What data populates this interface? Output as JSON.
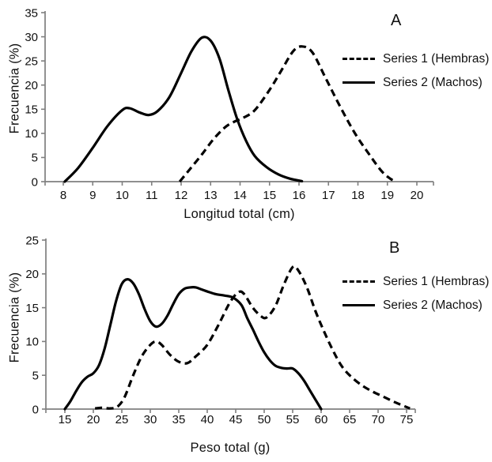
{
  "colors": {
    "curve": "#000000",
    "axis": "#7f7f7f",
    "text": "#111111",
    "background": "#ffffff"
  },
  "chart_data": [
    {
      "id": "A",
      "type": "line",
      "panel_label": "A",
      "xlabel": "Longitud total (cm)",
      "ylabel": "Frecuencia (%)",
      "xlim": [
        8,
        20
      ],
      "ylim": [
        0,
        35
      ],
      "xticks": [
        8,
        9,
        10,
        11,
        12,
        13,
        14,
        15,
        16,
        17,
        18,
        19,
        20
      ],
      "yticks": [
        0,
        5,
        10,
        15,
        20,
        25,
        30,
        35
      ],
      "grid": false,
      "legend_position": "right",
      "series": [
        {
          "name": "Series 1 (Hembras)",
          "style": "dashed",
          "points": [
            [
              11.95,
              0
            ],
            [
              12.3,
              2.6
            ],
            [
              12.7,
              5.6
            ],
            [
              13.1,
              8.8
            ],
            [
              13.5,
              11.3
            ],
            [
              13.8,
              12.4
            ],
            [
              14.1,
              13.2
            ],
            [
              14.5,
              14.8
            ],
            [
              15.0,
              19.0
            ],
            [
              15.4,
              23.0
            ],
            [
              15.8,
              27.0
            ],
            [
              16.1,
              28.0
            ],
            [
              16.45,
              26.8
            ],
            [
              16.9,
              21.5
            ],
            [
              17.4,
              15.5
            ],
            [
              17.9,
              10.0
            ],
            [
              18.4,
              5.5
            ],
            [
              18.8,
              2.2
            ],
            [
              19.1,
              0.6
            ],
            [
              19.25,
              0.15
            ]
          ]
        },
        {
          "name": "Series 2 (Machos)",
          "style": "solid",
          "points": [
            [
              8.05,
              0
            ],
            [
              8.5,
              2.8
            ],
            [
              9.0,
              7.0
            ],
            [
              9.5,
              11.5
            ],
            [
              10.0,
              14.8
            ],
            [
              10.25,
              15.2
            ],
            [
              10.6,
              14.3
            ],
            [
              10.9,
              13.8
            ],
            [
              11.2,
              14.6
            ],
            [
              11.6,
              17.5
            ],
            [
              12.0,
              22.5
            ],
            [
              12.35,
              27.0
            ],
            [
              12.7,
              29.8
            ],
            [
              13.0,
              29.2
            ],
            [
              13.3,
              25.5
            ],
            [
              13.6,
              19.0
            ],
            [
              13.9,
              13.0
            ],
            [
              14.2,
              8.5
            ],
            [
              14.5,
              5.3
            ],
            [
              14.9,
              3.0
            ],
            [
              15.3,
              1.5
            ],
            [
              15.7,
              0.6
            ],
            [
              16.1,
              0.1
            ]
          ]
        }
      ]
    },
    {
      "id": "B",
      "type": "line",
      "panel_label": "B",
      "xlabel": "Peso total (g)",
      "ylabel": "Frecuencia (%)",
      "xlim": [
        15,
        75
      ],
      "ylim": [
        0,
        25
      ],
      "xticks": [
        15,
        20,
        25,
        30,
        35,
        40,
        45,
        50,
        55,
        60,
        65,
        70,
        75
      ],
      "yticks": [
        0,
        5,
        10,
        15,
        20,
        25
      ],
      "grid": false,
      "legend_position": "right",
      "series": [
        {
          "name": "Series 1 (Hembras)",
          "style": "dashed",
          "points": [
            [
              20.3,
              0.1
            ],
            [
              21.5,
              0.2
            ],
            [
              23.0,
              0.1
            ],
            [
              24.3,
              0.4
            ],
            [
              25.5,
              1.8
            ],
            [
              27.0,
              5.0
            ],
            [
              28.5,
              7.8
            ],
            [
              30.0,
              9.5
            ],
            [
              31.0,
              10.0
            ],
            [
              32.0,
              9.5
            ],
            [
              33.5,
              8.0
            ],
            [
              35.0,
              7.0
            ],
            [
              36.5,
              6.8
            ],
            [
              38.0,
              7.8
            ],
            [
              40.0,
              9.5
            ],
            [
              42.0,
              12.5
            ],
            [
              44.0,
              15.8
            ],
            [
              45.5,
              17.3
            ],
            [
              46.5,
              17.0
            ],
            [
              48.0,
              15.0
            ],
            [
              49.5,
              13.7
            ],
            [
              50.5,
              13.6
            ],
            [
              52.0,
              15.3
            ],
            [
              53.5,
              18.5
            ],
            [
              55.0,
              21.0
            ],
            [
              56.0,
              20.5
            ],
            [
              57.5,
              18.0
            ],
            [
              59.0,
              14.5
            ],
            [
              60.5,
              11.5
            ],
            [
              62.0,
              8.8
            ],
            [
              63.5,
              6.5
            ],
            [
              65.0,
              5.0
            ],
            [
              67.0,
              3.6
            ],
            [
              69.0,
              2.6
            ],
            [
              71.0,
              1.8
            ],
            [
              73.0,
              1.0
            ],
            [
              75.0,
              0.3
            ],
            [
              75.6,
              0.1
            ]
          ]
        },
        {
          "name": "Series 2 (Machos)",
          "style": "solid",
          "points": [
            [
              15.0,
              0
            ],
            [
              16.0,
              1.2
            ],
            [
              17.0,
              2.7
            ],
            [
              18.0,
              4.0
            ],
            [
              19.0,
              4.8
            ],
            [
              20.0,
              5.3
            ],
            [
              21.0,
              6.5
            ],
            [
              22.0,
              9.0
            ],
            [
              23.0,
              12.5
            ],
            [
              24.0,
              16.0
            ],
            [
              25.0,
              18.5
            ],
            [
              26.0,
              19.2
            ],
            [
              27.0,
              18.6
            ],
            [
              28.0,
              17.0
            ],
            [
              29.0,
              14.8
            ],
            [
              30.0,
              13.0
            ],
            [
              31.0,
              12.2
            ],
            [
              32.0,
              12.6
            ],
            [
              33.0,
              13.8
            ],
            [
              34.0,
              15.5
            ],
            [
              35.0,
              17.0
            ],
            [
              36.0,
              17.8
            ],
            [
              37.0,
              18.0
            ],
            [
              38.0,
              18.0
            ],
            [
              39.0,
              17.7
            ],
            [
              40.0,
              17.4
            ],
            [
              41.5,
              17.0
            ],
            [
              43.0,
              16.8
            ],
            [
              44.5,
              16.5
            ],
            [
              46.0,
              15.4
            ],
            [
              47.0,
              13.5
            ],
            [
              48.0,
              11.8
            ],
            [
              49.0,
              10.0
            ],
            [
              50.0,
              8.4
            ],
            [
              51.0,
              7.2
            ],
            [
              52.0,
              6.4
            ],
            [
              53.0,
              6.1
            ],
            [
              54.0,
              6.0
            ],
            [
              55.0,
              6.0
            ],
            [
              56.0,
              5.3
            ],
            [
              57.0,
              4.2
            ],
            [
              58.0,
              2.8
            ],
            [
              59.0,
              1.4
            ],
            [
              60.0,
              0
            ]
          ]
        }
      ]
    }
  ]
}
